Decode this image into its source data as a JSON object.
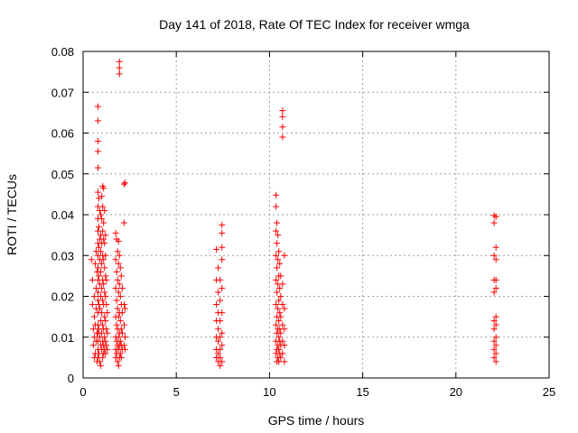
{
  "chart_data": {
    "type": "scatter",
    "title": "Day 141 of 2018, Rate Of TEC Index for receiver wmga",
    "xlabel": "GPS time / hours",
    "ylabel": "ROTI / TECUs",
    "xlim": [
      0,
      25
    ],
    "ylim": [
      0,
      0.08
    ],
    "xticks": [
      0,
      5,
      10,
      15,
      20,
      25
    ],
    "xtick_labels": [
      "0",
      "5",
      "10",
      "15",
      "20",
      "25"
    ],
    "yticks": [
      0,
      0.01,
      0.02,
      0.03,
      0.04,
      0.05,
      0.06,
      0.07,
      0.08
    ],
    "ytick_labels": [
      "0",
      "0.01",
      "0.02",
      "0.03",
      "0.04",
      "0.05",
      "0.06",
      "0.07",
      "0.08"
    ],
    "grid": true,
    "marker": "+",
    "colors": {
      "points": "#ff0000",
      "grid": "#a0a0a0",
      "axes": "#000000"
    },
    "points": [
      [
        0.45,
        0.029
      ],
      [
        0.5,
        0.024
      ],
      [
        0.5,
        0.018
      ],
      [
        0.55,
        0.012
      ],
      [
        0.55,
        0.008
      ],
      [
        0.6,
        0.005
      ],
      [
        0.6,
        0.01
      ],
      [
        0.6,
        0.015
      ],
      [
        0.6,
        0.02
      ],
      [
        0.65,
        0.028
      ],
      [
        0.65,
        0.006
      ],
      [
        0.65,
        0.013
      ],
      [
        0.7,
        0.009
      ],
      [
        0.7,
        0.017
      ],
      [
        0.7,
        0.022
      ],
      [
        0.7,
        0.031
      ],
      [
        0.75,
        0.004
      ],
      [
        0.75,
        0.011
      ],
      [
        0.75,
        0.026
      ],
      [
        0.8,
        0.0665
      ],
      [
        0.8,
        0.063
      ],
      [
        0.8,
        0.058
      ],
      [
        0.8,
        0.0555
      ],
      [
        0.8,
        0.0515
      ],
      [
        0.8,
        0.0455
      ],
      [
        0.8,
        0.042
      ],
      [
        0.8,
        0.039
      ],
      [
        0.8,
        0.036
      ],
      [
        0.8,
        0.033
      ],
      [
        0.8,
        0.03
      ],
      [
        0.8,
        0.027
      ],
      [
        0.8,
        0.024
      ],
      [
        0.8,
        0.021
      ],
      [
        0.8,
        0.019
      ],
      [
        0.8,
        0.016
      ],
      [
        0.8,
        0.013
      ],
      [
        0.8,
        0.011
      ],
      [
        0.8,
        0.009
      ],
      [
        0.8,
        0.007
      ],
      [
        0.8,
        0.005
      ],
      [
        0.85,
        0.044
      ],
      [
        0.85,
        0.037
      ],
      [
        0.85,
        0.032
      ],
      [
        0.85,
        0.025
      ],
      [
        0.85,
        0.018
      ],
      [
        0.85,
        0.012
      ],
      [
        0.85,
        0.006
      ],
      [
        0.9,
        0.041
      ],
      [
        0.9,
        0.034
      ],
      [
        0.9,
        0.029
      ],
      [
        0.9,
        0.023
      ],
      [
        0.9,
        0.017
      ],
      [
        0.9,
        0.01
      ],
      [
        0.9,
        0.004
      ],
      [
        0.95,
        0.04
      ],
      [
        0.95,
        0.035
      ],
      [
        0.95,
        0.031
      ],
      [
        0.95,
        0.026
      ],
      [
        0.95,
        0.02
      ],
      [
        0.95,
        0.014
      ],
      [
        0.95,
        0.008
      ],
      [
        0.95,
        0.003
      ],
      [
        1.0,
        0.0445
      ],
      [
        1.0,
        0.039
      ],
      [
        1.0,
        0.033
      ],
      [
        1.0,
        0.028
      ],
      [
        1.0,
        0.022
      ],
      [
        1.0,
        0.016
      ],
      [
        1.0,
        0.011
      ],
      [
        1.0,
        0.007
      ],
      [
        1.05,
        0.047
      ],
      [
        1.05,
        0.042
      ],
      [
        1.05,
        0.036
      ],
      [
        1.05,
        0.03
      ],
      [
        1.05,
        0.024
      ],
      [
        1.05,
        0.019
      ],
      [
        1.05,
        0.013
      ],
      [
        1.05,
        0.009
      ],
      [
        1.05,
        0.005
      ],
      [
        1.1,
        0.0465
      ],
      [
        1.1,
        0.038
      ],
      [
        1.1,
        0.034
      ],
      [
        1.1,
        0.029
      ],
      [
        1.1,
        0.023
      ],
      [
        1.1,
        0.018
      ],
      [
        1.1,
        0.012
      ],
      [
        1.1,
        0.008
      ],
      [
        1.1,
        0.006
      ],
      [
        1.15,
        0.041
      ],
      [
        1.15,
        0.033
      ],
      [
        1.15,
        0.027
      ],
      [
        1.15,
        0.021
      ],
      [
        1.15,
        0.015
      ],
      [
        1.15,
        0.01
      ],
      [
        1.15,
        0.007
      ],
      [
        1.2,
        0.035
      ],
      [
        1.2,
        0.03
      ],
      [
        1.2,
        0.025
      ],
      [
        1.2,
        0.02
      ],
      [
        1.2,
        0.014
      ],
      [
        1.2,
        0.009
      ],
      [
        1.2,
        0.006
      ],
      [
        1.25,
        0.024
      ],
      [
        1.25,
        0.018
      ],
      [
        1.25,
        0.012
      ],
      [
        1.25,
        0.008
      ],
      [
        1.3,
        0.016
      ],
      [
        1.3,
        0.011
      ],
      [
        1.3,
        0.007
      ],
      [
        1.75,
        0.0355
      ],
      [
        1.75,
        0.029
      ],
      [
        1.75,
        0.022
      ],
      [
        1.75,
        0.015
      ],
      [
        1.75,
        0.01
      ],
      [
        1.75,
        0.007
      ],
      [
        1.75,
        0.005
      ],
      [
        1.8,
        0.034
      ],
      [
        1.8,
        0.026
      ],
      [
        1.8,
        0.019
      ],
      [
        1.8,
        0.013
      ],
      [
        1.8,
        0.009
      ],
      [
        1.8,
        0.006
      ],
      [
        1.85,
        0.031
      ],
      [
        1.85,
        0.024
      ],
      [
        1.85,
        0.017
      ],
      [
        1.85,
        0.012
      ],
      [
        1.85,
        0.008
      ],
      [
        1.85,
        0.004
      ],
      [
        1.9,
        0.0335
      ],
      [
        1.9,
        0.028
      ],
      [
        1.9,
        0.021
      ],
      [
        1.9,
        0.015
      ],
      [
        1.9,
        0.01
      ],
      [
        1.9,
        0.007
      ],
      [
        1.9,
        0.003
      ],
      [
        1.95,
        0.0775
      ],
      [
        1.95,
        0.076
      ],
      [
        1.95,
        0.0745
      ],
      [
        1.95,
        0.03
      ],
      [
        1.95,
        0.023
      ],
      [
        1.95,
        0.016
      ],
      [
        1.95,
        0.011
      ],
      [
        1.95,
        0.008
      ],
      [
        1.95,
        0.005
      ],
      [
        2.0,
        0.027
      ],
      [
        2.0,
        0.02
      ],
      [
        2.0,
        0.014
      ],
      [
        2.0,
        0.009
      ],
      [
        2.0,
        0.006
      ],
      [
        2.05,
        0.025
      ],
      [
        2.05,
        0.018
      ],
      [
        2.05,
        0.012
      ],
      [
        2.05,
        0.008
      ],
      [
        2.05,
        0.005
      ],
      [
        2.1,
        0.022
      ],
      [
        2.1,
        0.016
      ],
      [
        2.1,
        0.011
      ],
      [
        2.1,
        0.007
      ],
      [
        2.2,
        0.0475
      ],
      [
        2.2,
        0.038
      ],
      [
        2.2,
        0.018
      ],
      [
        2.2,
        0.013
      ],
      [
        2.2,
        0.008
      ],
      [
        2.25,
        0.0478
      ],
      [
        2.25,
        0.017
      ],
      [
        2.25,
        0.01
      ],
      [
        2.25,
        0.007
      ],
      [
        7.15,
        0.0315
      ],
      [
        7.15,
        0.024
      ],
      [
        7.15,
        0.018
      ],
      [
        7.15,
        0.014
      ],
      [
        7.15,
        0.01
      ],
      [
        7.15,
        0.007
      ],
      [
        7.15,
        0.005
      ],
      [
        7.25,
        0.027
      ],
      [
        7.25,
        0.021
      ],
      [
        7.25,
        0.016
      ],
      [
        7.25,
        0.012
      ],
      [
        7.25,
        0.009
      ],
      [
        7.25,
        0.006
      ],
      [
        7.25,
        0.004
      ],
      [
        7.35,
        0.024
      ],
      [
        7.35,
        0.019
      ],
      [
        7.35,
        0.014
      ],
      [
        7.35,
        0.01
      ],
      [
        7.35,
        0.007
      ],
      [
        7.35,
        0.005
      ],
      [
        7.35,
        0.003
      ],
      [
        7.45,
        0.0375
      ],
      [
        7.45,
        0.0355
      ],
      [
        7.45,
        0.032
      ],
      [
        7.45,
        0.029
      ],
      [
        7.45,
        0.022
      ],
      [
        7.45,
        0.016
      ],
      [
        7.45,
        0.011
      ],
      [
        7.45,
        0.008
      ],
      [
        7.45,
        0.004
      ],
      [
        10.35,
        0.0448
      ],
      [
        10.35,
        0.042
      ],
      [
        10.35,
        0.036
      ],
      [
        10.35,
        0.03
      ],
      [
        10.35,
        0.024
      ],
      [
        10.35,
        0.018
      ],
      [
        10.35,
        0.013
      ],
      [
        10.35,
        0.009
      ],
      [
        10.35,
        0.006
      ],
      [
        10.4,
        0.038
      ],
      [
        10.4,
        0.033
      ],
      [
        10.4,
        0.027
      ],
      [
        10.4,
        0.021
      ],
      [
        10.4,
        0.015
      ],
      [
        10.4,
        0.011
      ],
      [
        10.4,
        0.007
      ],
      [
        10.4,
        0.004
      ],
      [
        10.45,
        0.035
      ],
      [
        10.45,
        0.029
      ],
      [
        10.45,
        0.023
      ],
      [
        10.45,
        0.017
      ],
      [
        10.45,
        0.012
      ],
      [
        10.45,
        0.008
      ],
      [
        10.45,
        0.005
      ],
      [
        10.5,
        0.031
      ],
      [
        10.5,
        0.025
      ],
      [
        10.5,
        0.019
      ],
      [
        10.5,
        0.014
      ],
      [
        10.5,
        0.01
      ],
      [
        10.5,
        0.007
      ],
      [
        10.5,
        0.004
      ],
      [
        10.55,
        0.028
      ],
      [
        10.55,
        0.022
      ],
      [
        10.55,
        0.016
      ],
      [
        10.55,
        0.012
      ],
      [
        10.55,
        0.009
      ],
      [
        10.55,
        0.006
      ],
      [
        10.6,
        0.025
      ],
      [
        10.6,
        0.02
      ],
      [
        10.6,
        0.015
      ],
      [
        10.6,
        0.011
      ],
      [
        10.6,
        0.008
      ],
      [
        10.6,
        0.005
      ],
      [
        10.7,
        0.0655
      ],
      [
        10.7,
        0.064
      ],
      [
        10.7,
        0.0615
      ],
      [
        10.7,
        0.059
      ],
      [
        10.7,
        0.023
      ],
      [
        10.7,
        0.018
      ],
      [
        10.7,
        0.013
      ],
      [
        10.7,
        0.009
      ],
      [
        10.7,
        0.006
      ],
      [
        10.8,
        0.03
      ],
      [
        10.8,
        0.017
      ],
      [
        10.8,
        0.012
      ],
      [
        10.8,
        0.008
      ],
      [
        10.8,
        0.004
      ],
      [
        22.05,
        0.0398
      ],
      [
        22.05,
        0.038
      ],
      [
        22.05,
        0.03
      ],
      [
        22.05,
        0.024
      ],
      [
        22.05,
        0.021
      ],
      [
        22.05,
        0.014
      ],
      [
        22.05,
        0.012
      ],
      [
        22.05,
        0.009
      ],
      [
        22.05,
        0.007
      ],
      [
        22.05,
        0.005
      ],
      [
        22.15,
        0.0395
      ],
      [
        22.15,
        0.032
      ],
      [
        22.15,
        0.029
      ],
      [
        22.15,
        0.024
      ],
      [
        22.15,
        0.022
      ],
      [
        22.15,
        0.015
      ],
      [
        22.15,
        0.013
      ],
      [
        22.15,
        0.01
      ],
      [
        22.15,
        0.008
      ],
      [
        22.15,
        0.006
      ],
      [
        22.15,
        0.004
      ]
    ]
  }
}
